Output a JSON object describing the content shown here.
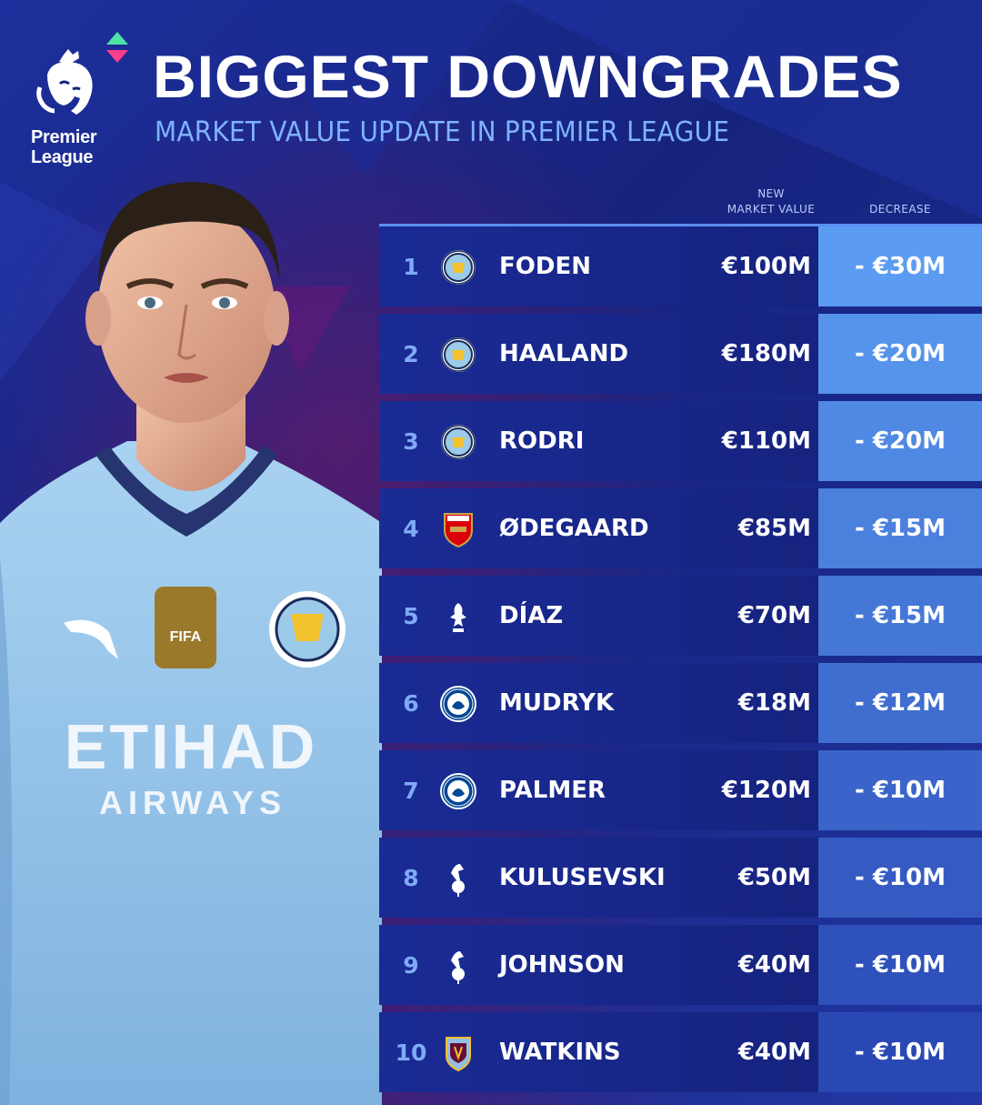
{
  "brand": {
    "logo_text_line1": "Premier",
    "logo_text_line2": "League"
  },
  "header": {
    "title": "BIGGEST DOWNGRADES",
    "subtitle": "MARKET VALUE UPDATE IN PREMIER LEAGUE"
  },
  "columns": {
    "value_line1": "NEW",
    "value_line2": "MARKET VALUE",
    "decrease": "DECREASE"
  },
  "colors": {
    "accent_blue": "#7eaaf6",
    "title_white": "#ffffff",
    "subtitle_blue": "#7fb3ff",
    "row_bg": "#1a2b95",
    "decrease_top": "#5b9cf2",
    "decrease_bottom": "#2a48b4"
  },
  "rows": [
    {
      "rank": "1",
      "club_icon": "man-city-crest-icon",
      "player": "FODEN",
      "value": "€100M",
      "decrease": "- €30M"
    },
    {
      "rank": "2",
      "club_icon": "man-city-crest-icon",
      "player": "HAALAND",
      "value": "€180M",
      "decrease": "- €20M"
    },
    {
      "rank": "3",
      "club_icon": "man-city-crest-icon",
      "player": "RODRI",
      "value": "€110M",
      "decrease": "- €20M"
    },
    {
      "rank": "4",
      "club_icon": "arsenal-crest-icon",
      "player": "ØDEGAARD",
      "value": "€85M",
      "decrease": "- €15M"
    },
    {
      "rank": "5",
      "club_icon": "liverpool-crest-icon",
      "player": "DÍAZ",
      "value": "€70M",
      "decrease": "- €15M"
    },
    {
      "rank": "6",
      "club_icon": "chelsea-crest-icon",
      "player": "MUDRYK",
      "value": "€18M",
      "decrease": "- €12M"
    },
    {
      "rank": "7",
      "club_icon": "chelsea-crest-icon",
      "player": "PALMER",
      "value": "€120M",
      "decrease": "- €10M"
    },
    {
      "rank": "8",
      "club_icon": "tottenham-crest-icon",
      "player": "KULUSEVSKI",
      "value": "€50M",
      "decrease": "- €10M"
    },
    {
      "rank": "9",
      "club_icon": "tottenham-crest-icon",
      "player": "JOHNSON",
      "value": "€40M",
      "decrease": "- €10M"
    },
    {
      "rank": "10",
      "club_icon": "aston-villa-crest-icon",
      "player": "WATKINS",
      "value": "€40M",
      "decrease": "- €10M"
    }
  ],
  "shirt": {
    "sponsor_line1": "ETIHAD",
    "sponsor_line2": "AIRWAYS",
    "badge_text": "FIFA"
  }
}
